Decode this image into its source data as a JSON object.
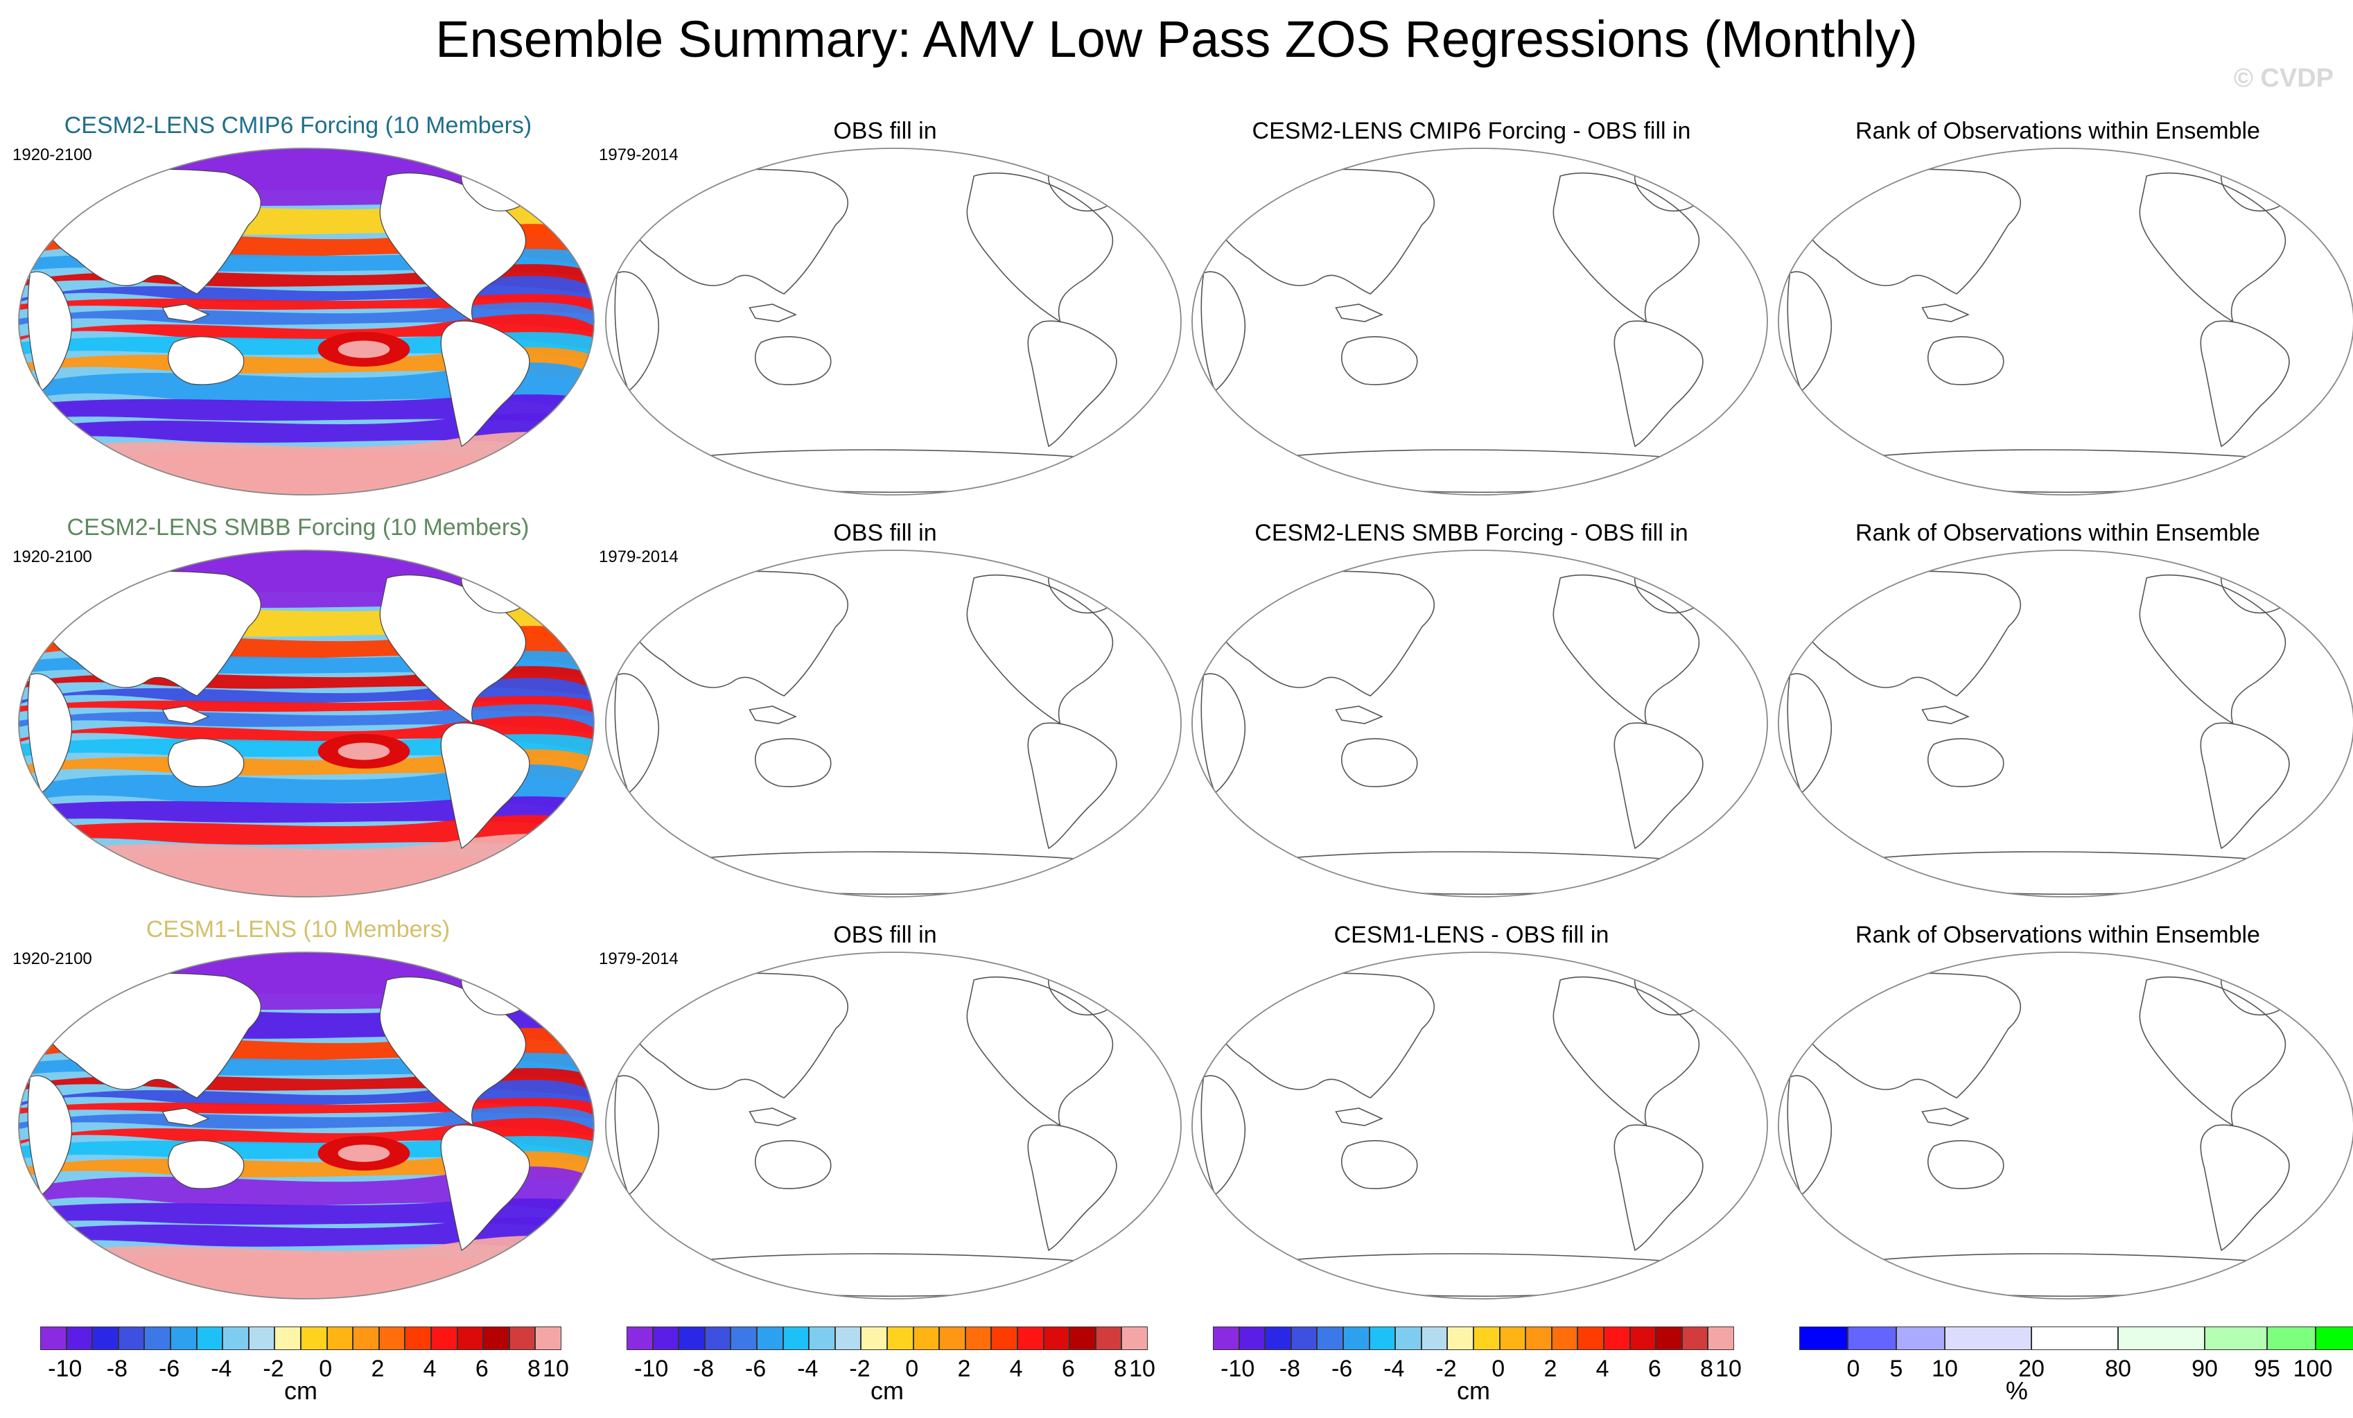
{
  "title": "Ensemble Summary: AMV Low Pass ZOS Regressions (Monthly)",
  "watermark": "© CVDP",
  "rows": [
    {
      "ensemble_title": "CESM2-LENS CMIP6 Forcing (10 Members)",
      "ensemble_color": "#1f6f8b",
      "ensemble_period": "1920-2100",
      "obs_title": "OBS fill in",
      "obs_period": "1979-2014",
      "diff_title": "CESM2-LENS CMIP6 Forcing - OBS fill in",
      "rank_title": "Rank of Observations within Ensemble",
      "variant": 0
    },
    {
      "ensemble_title": "CESM2-LENS SMBB Forcing (10 Members)",
      "ensemble_color": "#5d8a5e",
      "ensemble_period": "1920-2100",
      "obs_title": "OBS fill in",
      "obs_period": "1979-2014",
      "diff_title": "CESM2-LENS SMBB Forcing - OBS fill in",
      "rank_title": "Rank of Observations within Ensemble",
      "variant": 1
    },
    {
      "ensemble_title": "CESM1-LENS (10 Members)",
      "ensemble_color": "#d4c06a",
      "ensemble_period": "1920-2100",
      "obs_title": "OBS fill in",
      "obs_period": "1979-2014",
      "diff_title": "CESM1-LENS - OBS fill in",
      "rank_title": "Rank of Observations within Ensemble",
      "variant": 2
    }
  ],
  "colorbars": {
    "regression": {
      "colors": [
        "#8a2be2",
        "#5a1ee6",
        "#2a28e6",
        "#3d50e0",
        "#3d78e8",
        "#2ea0f0",
        "#1ec0f8",
        "#7ecdf0",
        "#b4dcf0",
        "#fff5a8",
        "#ffd21e",
        "#ffb414",
        "#ff9614",
        "#ff6e0a",
        "#ff3c00",
        "#ff1414",
        "#dc0a0a",
        "#b40000",
        "#d23c3c",
        "#f4a6a6"
      ],
      "tick_labels": [
        "-10",
        "-8",
        "-6",
        "-4",
        "-2",
        "0",
        "2",
        "4",
        "6",
        "8",
        "10"
      ],
      "unit": "cm"
    },
    "rank": {
      "colors": [
        "#0000ff",
        "#6464ff",
        "#aaaaff",
        "#dcdcff",
        "#ffffff",
        "#e6ffe6",
        "#b4ffb4",
        "#7cff7c",
        "#00ff00"
      ],
      "tick_labels": [
        "0",
        "5",
        "10",
        "20",
        "80",
        "90",
        "95",
        "100"
      ],
      "unit": "%"
    }
  },
  "chart_data": [
    {
      "type": "heatmap",
      "panel": "CESM2-LENS CMIP6 Forcing (10 Members)",
      "variable": "ZOS regression on AMV (low pass)",
      "units": "cm",
      "contour_levels": [
        -10,
        -9,
        -8,
        -7,
        -6,
        -5,
        -4,
        -3,
        -2,
        -1,
        0,
        1,
        2,
        3,
        4,
        5,
        6,
        7,
        8,
        9,
        10
      ],
      "period": "1920-2100"
    },
    {
      "type": "heatmap",
      "panel": "OBS fill in",
      "note": "no data plotted",
      "period": "1979-2014"
    },
    {
      "type": "heatmap",
      "panel": "CESM2-LENS CMIP6 Forcing - OBS fill in",
      "note": "no data plotted"
    },
    {
      "type": "heatmap",
      "panel": "Rank of Observations within Ensemble",
      "units": "%",
      "levels": [
        0,
        5,
        10,
        20,
        80,
        90,
        95,
        100
      ],
      "note": "no data plotted"
    },
    {
      "type": "heatmap",
      "panel": "CESM2-LENS SMBB Forcing (10 Members)",
      "variable": "ZOS regression on AMV (low pass)",
      "units": "cm",
      "contour_levels": [
        -10,
        -9,
        -8,
        -7,
        -6,
        -5,
        -4,
        -3,
        -2,
        -1,
        0,
        1,
        2,
        3,
        4,
        5,
        6,
        7,
        8,
        9,
        10
      ],
      "period": "1920-2100"
    },
    {
      "type": "heatmap",
      "panel": "CESM1-LENS (10 Members)",
      "variable": "ZOS regression on AMV (low pass)",
      "units": "cm",
      "contour_levels": [
        -10,
        -9,
        -8,
        -7,
        -6,
        -5,
        -4,
        -3,
        -2,
        -1,
        0,
        1,
        2,
        3,
        4,
        5,
        6,
        7,
        8,
        9,
        10
      ],
      "period": "1920-2100"
    }
  ]
}
